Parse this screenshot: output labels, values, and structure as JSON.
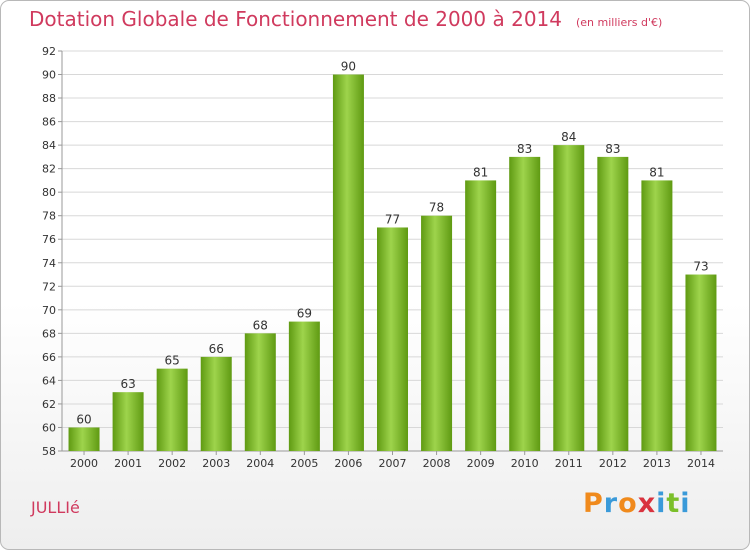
{
  "header": {
    "title": "Dotation Globale de Fonctionnement de 2000 à 2014",
    "unit": "(en milliers d'€)"
  },
  "footer": {
    "commune": "JULLIé",
    "logo_letters": [
      "P",
      "r",
      "o",
      "x",
      "i",
      "t",
      "i"
    ],
    "logo_colors": [
      "#f08a1c",
      "#3a9ad9",
      "#f08a1c",
      "#d9333f",
      "#3a9ad9",
      "#7bbf2a",
      "#3a9ad9"
    ]
  },
  "colors": {
    "bar_light": "#9ed44c",
    "bar_dark": "#5f9a12",
    "grid": "#d8d8d8",
    "axis": "#999999",
    "text": "#333333",
    "accent": "#d03a5e"
  },
  "chart_data": {
    "type": "bar",
    "title": "Dotation Globale de Fonctionnement de 2000 à 2014",
    "ylabel": "(en milliers d'€)",
    "xlabel": "",
    "categories": [
      "2000",
      "2001",
      "2002",
      "2003",
      "2004",
      "2005",
      "2006",
      "2007",
      "2008",
      "2009",
      "2010",
      "2011",
      "2012",
      "2013",
      "2014"
    ],
    "values": [
      60,
      63,
      65,
      66,
      68,
      69,
      90,
      77,
      78,
      81,
      83,
      84,
      83,
      81,
      73
    ],
    "ylim": [
      58,
      92
    ],
    "yticks": [
      58,
      60,
      62,
      64,
      66,
      68,
      70,
      72,
      74,
      76,
      78,
      80,
      82,
      84,
      86,
      88,
      90,
      92
    ],
    "grid": true,
    "legend": "none"
  }
}
